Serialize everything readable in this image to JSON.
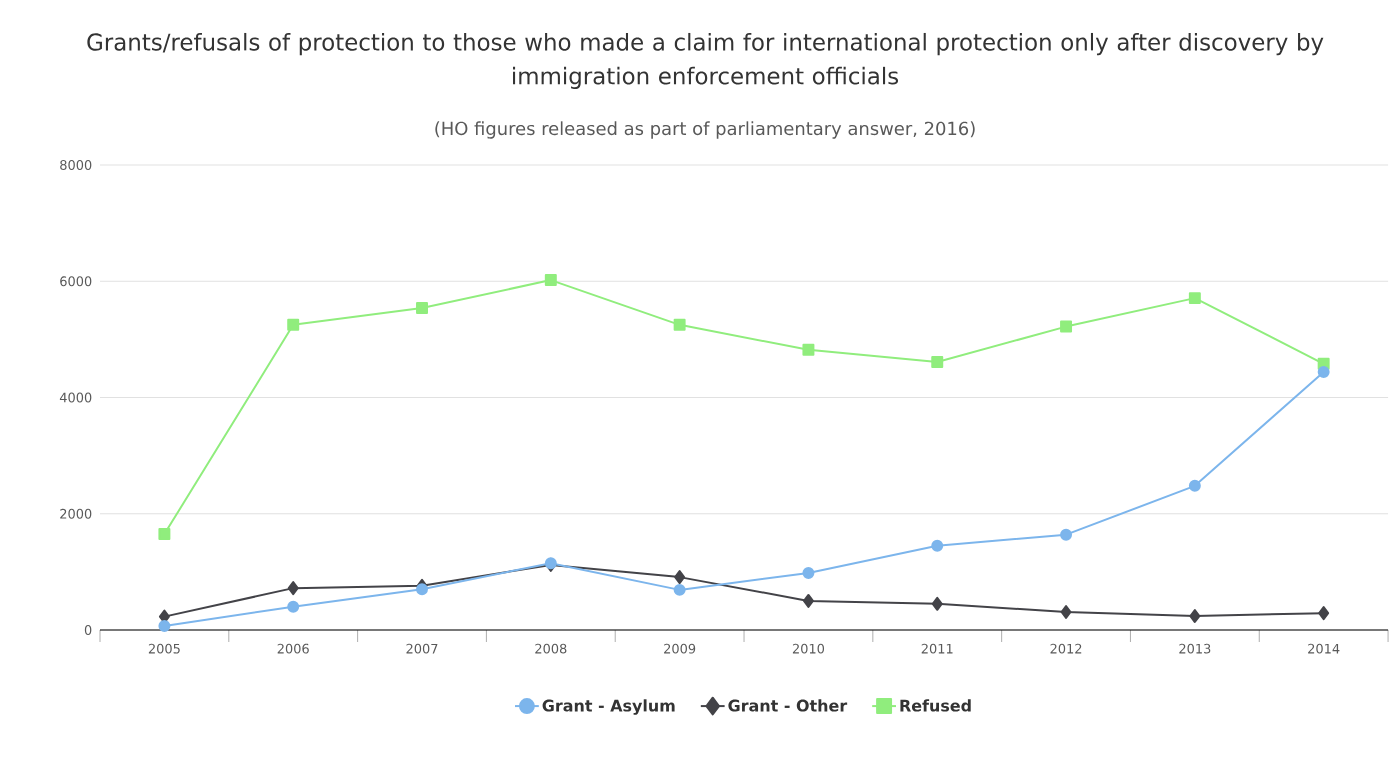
{
  "chart_data": {
    "type": "line",
    "title": "Grants/refusals of protection to those who made a claim for international protection only after discovery by immigration enforcement officials",
    "subtitle": "(HO figures released as part of parliamentary answer, 2016)",
    "categories": [
      "2005",
      "2006",
      "2007",
      "2008",
      "2009",
      "2010",
      "2011",
      "2012",
      "2013",
      "2014"
    ],
    "series": [
      {
        "name": "Grant - Asylum",
        "color": "#7cb5ec",
        "marker": "circle",
        "values": [
          70,
          400,
          700,
          1150,
          690,
          980,
          1450,
          1640,
          2480,
          4440
        ]
      },
      {
        "name": "Grant - Other",
        "color": "#434348",
        "marker": "diamond",
        "values": [
          230,
          720,
          760,
          1120,
          910,
          500,
          450,
          310,
          240,
          290
        ]
      },
      {
        "name": "Refused",
        "color": "#90ed7d",
        "marker": "square",
        "values": [
          1650,
          5250,
          5540,
          6020,
          5250,
          4820,
          4610,
          5220,
          5710,
          4580
        ]
      }
    ],
    "ylim": [
      0,
      8000
    ],
    "yticks": [
      0,
      2000,
      4000,
      6000,
      8000
    ],
    "grid": "y",
    "legend": "bottom",
    "line_style": "solid"
  }
}
